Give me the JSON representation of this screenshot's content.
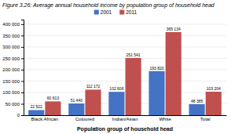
{
  "chart_data": {
    "type": "bar",
    "title": "Figure 3.26: Average annual household income by population group of household head",
    "xlabel": "Population group of household head",
    "categories": [
      "Black African",
      "Coloured",
      "Indian/Asian",
      "White",
      "Total"
    ],
    "series": [
      {
        "name": "2001",
        "color": "#4472C4",
        "values": [
          22522,
          51440,
          102606,
          193820,
          48385
        ],
        "value_labels": [
          "22 522",
          "51 440",
          "102 606",
          "193 820",
          "48 385"
        ]
      },
      {
        "name": "2011",
        "color": "#C0504D",
        "values": [
          60613,
          112172,
          251541,
          365134,
          103204
        ],
        "value_labels": [
          "60 613",
          "112 172",
          "251 541",
          "365 134",
          "103 204"
        ]
      }
    ],
    "ylim": [
      0,
      420000
    ],
    "yticks": [
      0,
      {
        "value": 50000,
        "label": "50 000"
      },
      {
        "value": 100000,
        "label": "100 000"
      },
      {
        "value": 150000,
        "label": "150 000"
      },
      {
        "value": 200000,
        "label": "200 000"
      },
      {
        "value": 250000,
        "label": "250 000"
      },
      {
        "value": 300000,
        "label": "300 000"
      },
      {
        "value": 350000,
        "label": "350 000"
      },
      {
        "value": 400000,
        "label": "400 000"
      }
    ],
    "grid": true,
    "data_labels": true,
    "legend": "top"
  }
}
